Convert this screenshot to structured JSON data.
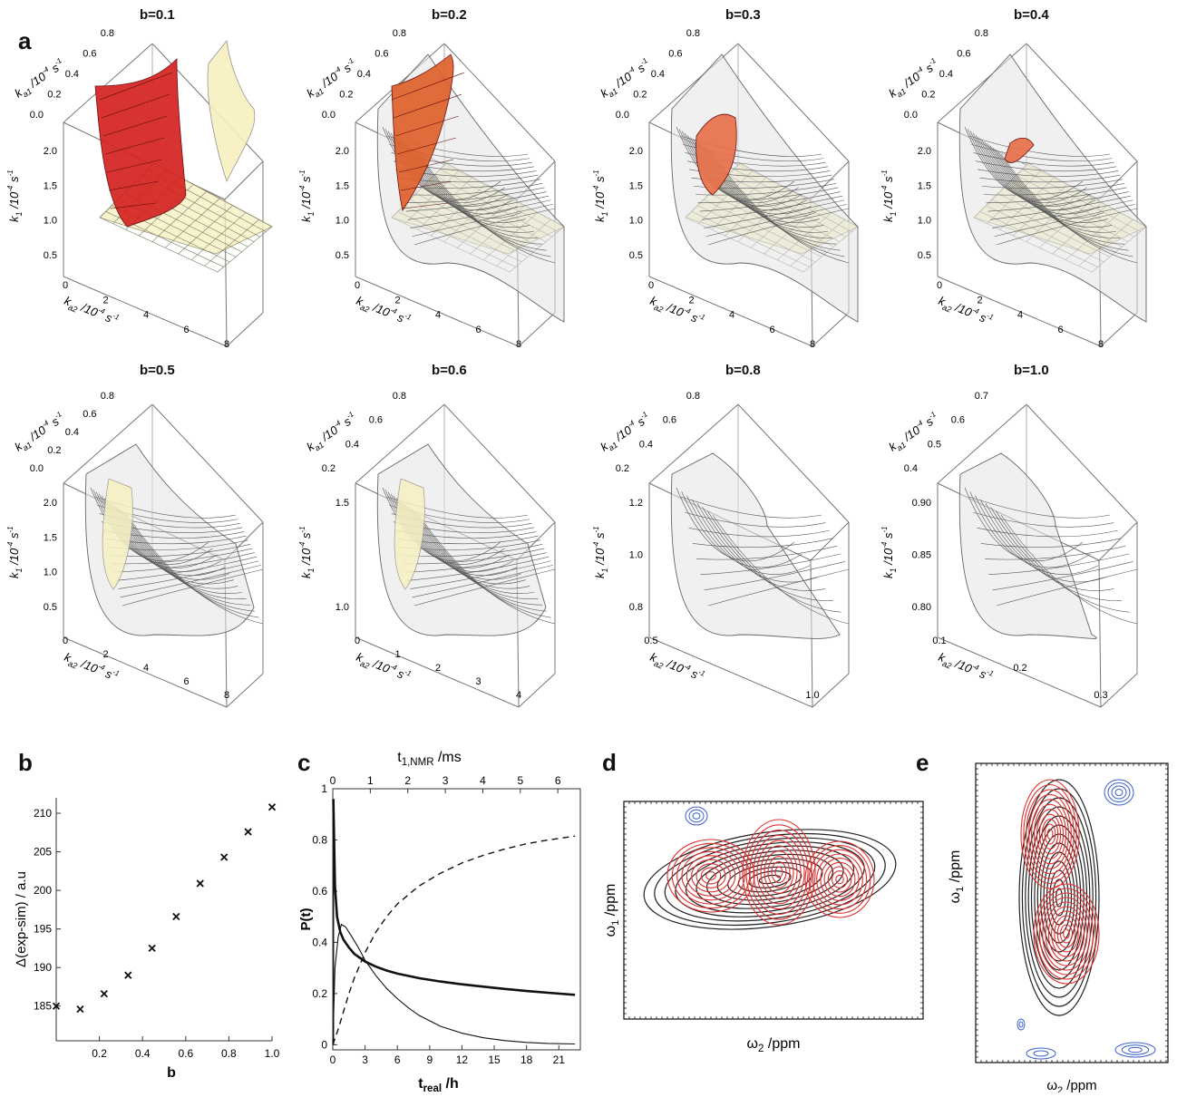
{
  "panel_letters": {
    "a": "a",
    "b": "b",
    "c": "c",
    "d": "d",
    "e": "e"
  },
  "surface_plots": [
    {
      "title": "b=0.1",
      "ka1_ticks": [
        "0.0",
        "0.2",
        "0.4",
        "0.6",
        "0.8"
      ],
      "k1_ticks": [
        "0.5",
        "1.0",
        "1.5",
        "2.0"
      ],
      "ka2_ticks": [
        "0",
        "2",
        "4",
        "6",
        "8"
      ],
      "surfaces": [
        "red",
        "yellow"
      ]
    },
    {
      "title": "b=0.2",
      "ka1_ticks": [
        "0.0",
        "0.2",
        "0.4",
        "0.6",
        "0.8"
      ],
      "k1_ticks": [
        "0.5",
        "1.0",
        "1.5",
        "2.0"
      ],
      "ka2_ticks": [
        "0",
        "2",
        "4",
        "6",
        "8"
      ],
      "surfaces": [
        "orange",
        "yellow",
        "grey"
      ]
    },
    {
      "title": "b=0.3",
      "ka1_ticks": [
        "0.0",
        "0.2",
        "0.4",
        "0.6",
        "0.8"
      ],
      "k1_ticks": [
        "0.5",
        "1.0",
        "1.5",
        "2.0"
      ],
      "ka2_ticks": [
        "0",
        "2",
        "4",
        "6",
        "8"
      ],
      "surfaces": [
        "salmon",
        "yellow",
        "grey"
      ]
    },
    {
      "title": "b=0.4",
      "ka1_ticks": [
        "0.0",
        "0.2",
        "0.4",
        "0.6",
        "0.8"
      ],
      "k1_ticks": [
        "0.5",
        "1.0",
        "1.5",
        "2.0"
      ],
      "ka2_ticks": [
        "0",
        "2",
        "4",
        "6",
        "8"
      ],
      "surfaces": [
        "salmon-small",
        "yellow",
        "grey"
      ]
    },
    {
      "title": "b=0.5",
      "ka1_ticks": [
        "0.0",
        "0.2",
        "0.4",
        "0.6",
        "0.8"
      ],
      "k1_ticks": [
        "0.5",
        "1.0",
        "1.5",
        "2.0"
      ],
      "ka2_ticks": [
        "0",
        "2",
        "4",
        "6",
        "8"
      ],
      "surfaces": [
        "yellow",
        "grey"
      ]
    },
    {
      "title": "b=0.6",
      "ka1_ticks": [
        "0.2",
        "0.4",
        "0.6",
        "0.8"
      ],
      "k1_ticks": [
        "1.0",
        "1.5"
      ],
      "ka2_ticks": [
        "0",
        "1",
        "2",
        "3",
        "4"
      ],
      "surfaces": [
        "yellow",
        "grey"
      ]
    },
    {
      "title": "b=0.8",
      "ka1_ticks": [
        "0.2",
        "0.4",
        "0.6",
        "0.8"
      ],
      "k1_ticks": [
        "0.8",
        "1.0",
        "1.2"
      ],
      "ka2_ticks": [
        "0.5",
        "1.0"
      ],
      "surfaces": [
        "grey"
      ]
    },
    {
      "title": "b=1.0",
      "ka1_ticks": [
        "0.4",
        "0.5",
        "0.6",
        "0.7"
      ],
      "k1_ticks": [
        "0.80",
        "0.85",
        "0.90"
      ],
      "ka2_ticks": [
        "0.1",
        "0.2",
        "0.3"
      ],
      "surfaces": [
        "grey"
      ]
    }
  ],
  "axis_labels": {
    "ka1_base": "k",
    "ka1_sub": "a1",
    "ka1_unit": " /10",
    "ka1_exp": "-4",
    "ka1_s": " s",
    "ka1_sexp": "-1",
    "k1_base": "k",
    "k1_sub": "1",
    "ka2_sub": "a2"
  },
  "chart_data": [
    {
      "type": "scatter",
      "panel": "b",
      "x": [
        0.0,
        0.111,
        0.222,
        0.333,
        0.444,
        0.556,
        0.667,
        0.778,
        0.889,
        1.0
      ],
      "y": [
        185.0,
        184.6,
        186.6,
        189.0,
        192.5,
        196.6,
        200.9,
        204.3,
        207.6,
        210.8
      ],
      "marker": "x",
      "xlabel": "b",
      "ylabel": "Δ(exp-sim) / a.u",
      "xlim": [
        0,
        1.0
      ],
      "ylim": [
        180.5,
        212
      ],
      "xticks": [
        "0.2",
        "0.4",
        "0.6",
        "0.8",
        "1.0"
      ],
      "yticks": [
        "185",
        "190",
        "195",
        "200",
        "205",
        "210"
      ]
    },
    {
      "type": "line",
      "panel": "c",
      "xlabel_main": "t",
      "xlabel_sub": "real",
      "xlabel_unit": " /h",
      "xlabel_top_main": "t",
      "xlabel_top_sub": "1,NMR",
      "xlabel_top_unit": " /ms",
      "ylabel": "P(t)",
      "xlim": [
        0,
        23
      ],
      "ylim": [
        -0.02,
        1.0
      ],
      "xticks": [
        "0",
        "3",
        "6",
        "9",
        "12",
        "15",
        "18",
        "21"
      ],
      "xticks_top": [
        "0",
        "1",
        "2",
        "3",
        "4",
        "5",
        "6"
      ],
      "yticks": [
        "0",
        "0.2",
        "0.4",
        "0.6",
        "0.8",
        "1"
      ],
      "series": [
        {
          "style": "thick",
          "x": [
            0.05,
            0.1,
            0.2,
            0.4,
            0.7,
            1,
            1.5,
            2,
            3,
            4,
            5,
            6,
            8,
            10,
            12,
            14,
            16,
            18,
            20,
            22.5
          ],
          "y": [
            0.96,
            0.85,
            0.62,
            0.5,
            0.44,
            0.41,
            0.38,
            0.355,
            0.325,
            0.305,
            0.29,
            0.278,
            0.26,
            0.247,
            0.236,
            0.227,
            0.218,
            0.21,
            0.203,
            0.195
          ]
        },
        {
          "style": "thin",
          "x": [
            0,
            0.2,
            0.5,
            0.8,
            1.2,
            1.8,
            2.5,
            3,
            4,
            5,
            6,
            7,
            8,
            10,
            12,
            14,
            16,
            18,
            20,
            22.5
          ],
          "y": [
            0.0,
            0.3,
            0.42,
            0.47,
            0.46,
            0.42,
            0.37,
            0.33,
            0.27,
            0.22,
            0.18,
            0.145,
            0.115,
            0.072,
            0.045,
            0.027,
            0.016,
            0.009,
            0.005,
            0.003
          ]
        },
        {
          "style": "dashed",
          "x": [
            0,
            0.5,
            1,
            1.5,
            2,
            3,
            4,
            5,
            6,
            8,
            10,
            12,
            14,
            16,
            18,
            20,
            22.5
          ],
          "y": [
            0.0,
            0.06,
            0.13,
            0.2,
            0.26,
            0.36,
            0.44,
            0.5,
            0.55,
            0.62,
            0.67,
            0.71,
            0.74,
            0.765,
            0.785,
            0.8,
            0.815
          ]
        }
      ]
    }
  ],
  "nmr_d": {
    "xlabel_main": "ω",
    "xlabel_sub": "2",
    "xlabel_unit": " /ppm",
    "ylabel_main": "ω",
    "ylabel_sub": "1",
    "ylabel_unit": " /ppm"
  },
  "nmr_e": {
    "xlabel_main": "ω",
    "xlabel_sub": "2",
    "xlabel_unit": " /ppm",
    "ylabel_main": "ω",
    "ylabel_sub": "1",
    "ylabel_unit": " /ppm"
  },
  "colors": {
    "red_contour": "#e0302e",
    "black_contour": "#222222",
    "blue_contour": "#3a5fcd",
    "red_surface": "#d42222",
    "orange_surface": "#e0612b",
    "salmon_surface": "#e8704a",
    "yellow_surface": "#f6f0bf",
    "grey_surface": "#e4e4e4"
  }
}
